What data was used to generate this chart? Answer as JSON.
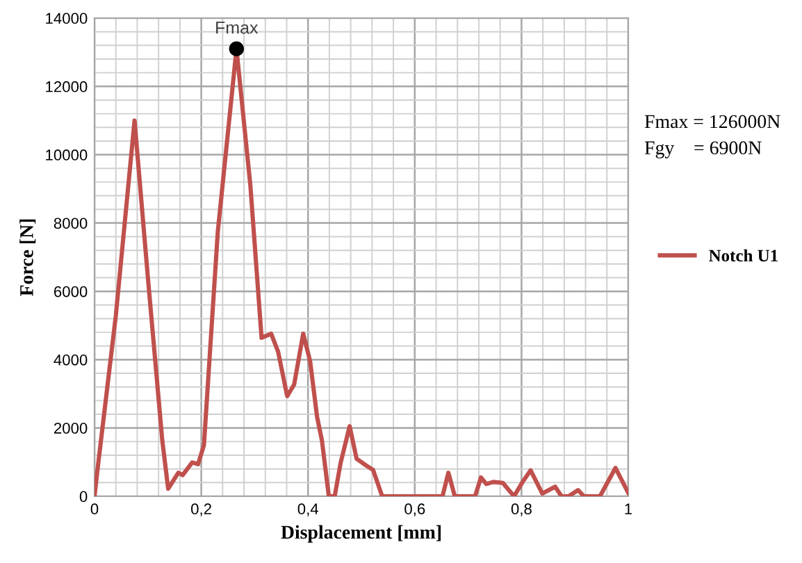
{
  "chart_data": {
    "type": "line",
    "xlabel": "Displacement [mm]",
    "ylabel": "Force [N]",
    "xlim": [
      0,
      1
    ],
    "ylim": [
      0,
      14000
    ],
    "xticks": [
      0,
      {
        "value": 0.2,
        "label": "0,2"
      },
      {
        "value": 0.4,
        "label": "0,4"
      },
      {
        "value": 0.6,
        "label": "0,6"
      },
      {
        "value": 0.8,
        "label": "0,8"
      },
      1
    ],
    "yticks": [
      0,
      2000,
      4000,
      6000,
      8000,
      10000,
      12000,
      14000
    ],
    "grid": true,
    "legend": "right",
    "line_style": "solid",
    "series": [
      {
        "name": "Notch U1",
        "color": "#c0504d",
        "marker": "none",
        "x": [
          0,
          0.005,
          0.04,
          0.075,
          0.1,
          0.127,
          0.138,
          0.157,
          0.165,
          0.183,
          0.194,
          0.205,
          0.231,
          0.266,
          0.292,
          0.313,
          0.331,
          0.344,
          0.361,
          0.374,
          0.391,
          0.404,
          0.417,
          0.426,
          0.439,
          0.45,
          0.461,
          0.478,
          0.491,
          0.509,
          0.522,
          0.539,
          0.652,
          0.663,
          0.675,
          0.713,
          0.724,
          0.734,
          0.747,
          0.765,
          0.786,
          0.802,
          0.817,
          0.839,
          0.863,
          0.875,
          0.888,
          0.906,
          0.917,
          0.947,
          0.976,
          1.0
        ],
        "values": [
          0,
          700,
          5300,
          11000,
          6400,
          1630,
          220,
          690,
          620,
          990,
          940,
          1500,
          7750,
          13100,
          9100,
          4640,
          4760,
          4230,
          2930,
          3270,
          4760,
          3950,
          2320,
          1640,
          0,
          0,
          970,
          2050,
          1100,
          900,
          770,
          0,
          0,
          690,
          0,
          0,
          550,
          360,
          420,
          390,
          0,
          420,
          760,
          80,
          280,
          0,
          0,
          180,
          0,
          0,
          830,
          100
        ]
      },
      {
        "color": "#000000",
        "type": "scatter",
        "marker": "circle",
        "x": [
          0.266
        ],
        "values": [
          13100
        ]
      }
    ],
    "annotations": [
      {
        "text": "Fmax",
        "x": 0.266,
        "y": 13100
      },
      "Fmax = 126000N",
      "Fgy    = 6900N"
    ]
  }
}
